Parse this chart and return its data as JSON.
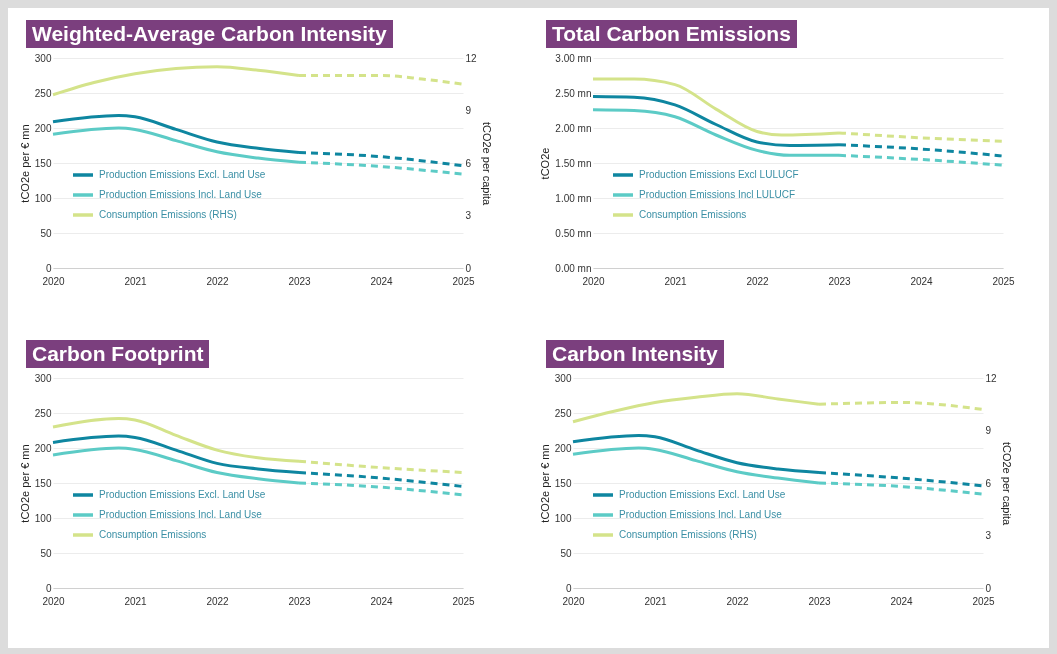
{
  "chart_data": [
    {
      "type": "line",
      "title": "Weighted-Average Carbon Intensity",
      "ylabel": "tCO2e per € mn",
      "y2label": "tCO2e per capita",
      "xlim": [
        2020,
        2025
      ],
      "xticks": [
        2020,
        2021,
        2022,
        2023,
        2024,
        2025
      ],
      "ylim": [
        0,
        300
      ],
      "yticks": [
        0,
        50,
        100,
        150,
        200,
        250,
        300
      ],
      "y2lim": [
        0,
        12
      ],
      "y2ticks": [
        0,
        3,
        6,
        9,
        12
      ],
      "grid": "y",
      "legend": "left",
      "series": [
        {
          "name": "Production Emissions Excl. Land Use",
          "color": "#0e86a0",
          "line_style": "solid",
          "x": [
            2020,
            2020.8,
            2021,
            2021.5,
            2022,
            2022.5,
            2023
          ],
          "values": [
            209,
            218,
            216,
            198,
            180,
            171,
            165
          ]
        },
        {
          "name": "Production Emissions Incl. Land Use",
          "color": "#5ccbc6",
          "line_style": "solid",
          "x": [
            2020,
            2020.8,
            2021,
            2021.5,
            2022,
            2022.5,
            2023
          ],
          "values": [
            191,
            200,
            198,
            182,
            166,
            157,
            151
          ]
        },
        {
          "name": "Consumption Emissions (RHS)",
          "color": "#d4e38a",
          "line_style": "solid",
          "axis": "y2",
          "x": [
            2020,
            2020.5,
            2021,
            2021.5,
            2022,
            2022.5,
            2023
          ],
          "values": [
            9.9,
            10.6,
            11.1,
            11.4,
            11.5,
            11.3,
            11.0
          ]
        },
        {
          "color": "#0e86a0",
          "line_style": "dashed",
          "x": [
            2023,
            2024,
            2025
          ],
          "values": [
            165,
            159,
            146
          ]
        },
        {
          "color": "#5ccbc6",
          "line_style": "dashed",
          "x": [
            2023,
            2024,
            2025
          ],
          "values": [
            151,
            145,
            134
          ]
        },
        {
          "color": "#d4e38a",
          "line_style": "dashed",
          "axis": "y2",
          "x": [
            2023,
            2024,
            2024.5,
            2025
          ],
          "values": [
            11.0,
            11.0,
            10.8,
            10.5
          ]
        }
      ]
    },
    {
      "type": "line",
      "title": "Total Carbon Emissions",
      "ylabel": "tCO2e",
      "xlim": [
        2020,
        2025
      ],
      "xticks": [
        2020,
        2021,
        2022,
        2023,
        2024,
        2025
      ],
      "ylim": [
        0,
        3
      ],
      "yticks": [
        {
          "value": 0,
          "label": "0.00 mn"
        },
        {
          "value": 0.5,
          "label": "0.50 mn"
        },
        {
          "value": 1,
          "label": "1.00 mn"
        },
        {
          "value": 1.5,
          "label": "1.50 mn"
        },
        {
          "value": 2,
          "label": "2.00 mn"
        },
        {
          "value": 2.5,
          "label": "2.50 mn"
        },
        {
          "value": 3,
          "label": "3.00 mn"
        }
      ],
      "grid": "y",
      "legend": "left",
      "series": [
        {
          "name": "Production Emissions Excl LULUCF",
          "color": "#0e86a0",
          "line_style": "solid",
          "x": [
            2020,
            2020.5,
            2021,
            2021.5,
            2022,
            2022.4,
            2023
          ],
          "values": [
            2.45,
            2.44,
            2.33,
            2.05,
            1.8,
            1.75,
            1.76
          ]
        },
        {
          "name": "Production Emissions Incl LULUCF",
          "color": "#5ccbc6",
          "line_style": "solid",
          "x": [
            2020,
            2020.5,
            2021,
            2021.5,
            2022,
            2022.4,
            2023
          ],
          "values": [
            2.26,
            2.25,
            2.16,
            1.9,
            1.68,
            1.61,
            1.61
          ]
        },
        {
          "name": "Consumption Emissions",
          "color": "#d4e38a",
          "line_style": "solid",
          "x": [
            2020,
            2020.5,
            2021,
            2021.5,
            2022,
            2022.3,
            2023
          ],
          "values": [
            2.7,
            2.7,
            2.62,
            2.27,
            1.95,
            1.9,
            1.93
          ]
        },
        {
          "color": "#0e86a0",
          "line_style": "dashed",
          "x": [
            2023,
            2024,
            2025
          ],
          "values": [
            1.76,
            1.7,
            1.6
          ]
        },
        {
          "color": "#5ccbc6",
          "line_style": "dashed",
          "x": [
            2023,
            2024,
            2025
          ],
          "values": [
            1.61,
            1.55,
            1.47
          ]
        },
        {
          "color": "#d4e38a",
          "line_style": "dashed",
          "x": [
            2023,
            2024,
            2025
          ],
          "values": [
            1.93,
            1.86,
            1.81
          ]
        }
      ]
    },
    {
      "type": "line",
      "title": "Carbon Footprint",
      "ylabel": "tCO2e per € mn",
      "xlim": [
        2020,
        2025
      ],
      "xticks": [
        2020,
        2021,
        2022,
        2023,
        2024,
        2025
      ],
      "ylim": [
        0,
        300
      ],
      "yticks": [
        0,
        50,
        100,
        150,
        200,
        250,
        300
      ],
      "grid": "y",
      "legend": "left",
      "series": [
        {
          "name": "Production Emissions Excl. Land Use",
          "color": "#0e86a0",
          "line_style": "solid",
          "x": [
            2020,
            2020.8,
            2021,
            2021.5,
            2022,
            2022.5,
            2023
          ],
          "values": [
            208,
            217,
            215,
            197,
            178,
            170,
            165
          ]
        },
        {
          "name": "Production Emissions Incl. Land Use",
          "color": "#5ccbc6",
          "line_style": "solid",
          "x": [
            2020,
            2020.8,
            2021,
            2021.5,
            2022,
            2022.5,
            2023
          ],
          "values": [
            190,
            200,
            198,
            182,
            165,
            156,
            150
          ]
        },
        {
          "name": "Consumption Emissions",
          "color": "#d4e38a",
          "line_style": "solid",
          "x": [
            2020,
            2020.8,
            2021,
            2021.5,
            2022,
            2022.5,
            2023
          ],
          "values": [
            230,
            242,
            240,
            218,
            197,
            186,
            181
          ]
        },
        {
          "color": "#0e86a0",
          "line_style": "dashed",
          "x": [
            2023,
            2024,
            2025
          ],
          "values": [
            165,
            157,
            145
          ]
        },
        {
          "color": "#5ccbc6",
          "line_style": "dashed",
          "x": [
            2023,
            2024,
            2025
          ],
          "values": [
            150,
            144,
            133
          ]
        },
        {
          "color": "#d4e38a",
          "line_style": "dashed",
          "x": [
            2023,
            2024,
            2025
          ],
          "values": [
            181,
            172,
            165
          ]
        }
      ]
    },
    {
      "type": "line",
      "title": "Carbon Intensity",
      "ylabel": "tCO2e per € mn",
      "y2label": "tCO2e per capita",
      "xlim": [
        2020,
        2025
      ],
      "xticks": [
        2020,
        2021,
        2022,
        2023,
        2024,
        2025
      ],
      "ylim": [
        0,
        300
      ],
      "yticks": [
        0,
        50,
        100,
        150,
        200,
        250,
        300
      ],
      "y2lim": [
        0,
        12
      ],
      "y2ticks": [
        0,
        3,
        6,
        9,
        12
      ],
      "grid": "y",
      "legend": "left",
      "series": [
        {
          "name": "Production Emissions Excl. Land Use",
          "color": "#0e86a0",
          "line_style": "solid",
          "x": [
            2020,
            2020.8,
            2021,
            2021.5,
            2022,
            2022.5,
            2023
          ],
          "values": [
            209,
            218,
            216,
            197,
            179,
            170,
            165
          ]
        },
        {
          "name": "Production Emissions Incl. Land Use",
          "color": "#5ccbc6",
          "line_style": "solid",
          "x": [
            2020,
            2020.8,
            2021,
            2021.5,
            2022,
            2022.5,
            2023
          ],
          "values": [
            191,
            200,
            198,
            182,
            166,
            157,
            150
          ]
        },
        {
          "name": "Consumption Emissions (RHS)",
          "color": "#d4e38a",
          "line_style": "solid",
          "axis": "y2",
          "x": [
            2020,
            2020.5,
            2021,
            2021.5,
            2022,
            2022.5,
            2023
          ],
          "values": [
            9.5,
            10.1,
            10.6,
            10.9,
            11.1,
            10.8,
            10.5
          ]
        },
        {
          "color": "#0e86a0",
          "line_style": "dashed",
          "x": [
            2023,
            2024,
            2025
          ],
          "values": [
            165,
            157,
            146
          ]
        },
        {
          "color": "#5ccbc6",
          "line_style": "dashed",
          "x": [
            2023,
            2024,
            2025
          ],
          "values": [
            150,
            145,
            134
          ]
        },
        {
          "color": "#d4e38a",
          "line_style": "dashed",
          "axis": "y2",
          "x": [
            2023,
            2024,
            2025
          ],
          "values": [
            10.5,
            10.6,
            10.2
          ]
        }
      ]
    }
  ]
}
